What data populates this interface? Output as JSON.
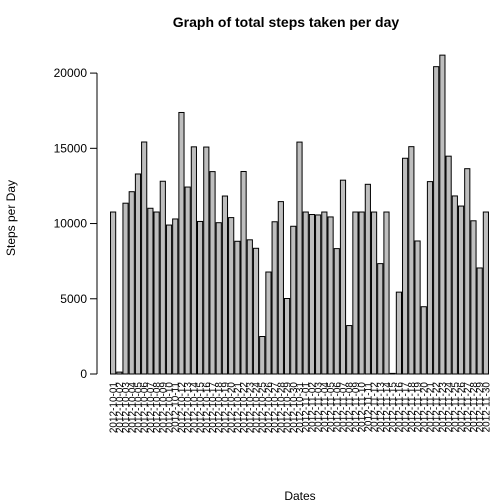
{
  "chart_data": {
    "type": "bar",
    "title": "Graph of total steps taken per day",
    "xlabel": "Dates",
    "ylabel": "Steps per Day",
    "ylim": [
      0,
      22000
    ],
    "yticks": [
      0,
      5000,
      10000,
      15000,
      20000
    ],
    "bar_fill": "#bebebe",
    "bar_stroke": "#000000",
    "categories": [
      "2012-10-01",
      "2012-10-02",
      "2012-10-03",
      "2012-10-04",
      "2012-10-05",
      "2012-10-06",
      "2012-10-07",
      "2012-10-08",
      "2012-10-09",
      "2012-10-10",
      "2012-10-11",
      "2012-10-12",
      "2012-10-13",
      "2012-10-14",
      "2012-10-15",
      "2012-10-16",
      "2012-10-17",
      "2012-10-18",
      "2012-10-19",
      "2012-10-20",
      "2012-10-21",
      "2012-10-22",
      "2012-10-23",
      "2012-10-24",
      "2012-10-25",
      "2012-10-26",
      "2012-10-27",
      "2012-10-28",
      "2012-10-29",
      "2012-10-30",
      "2012-10-31",
      "2012-11-01",
      "2012-11-02",
      "2012-11-03",
      "2012-11-04",
      "2012-11-05",
      "2012-11-06",
      "2012-11-07",
      "2012-11-08",
      "2012-11-09",
      "2012-11-10",
      "2012-11-11",
      "2012-11-12",
      "2012-11-13",
      "2012-11-14",
      "2012-11-15",
      "2012-11-16",
      "2012-11-17",
      "2012-11-18",
      "2012-11-19",
      "2012-11-20",
      "2012-11-21",
      "2012-11-22",
      "2012-11-23",
      "2012-11-24",
      "2012-11-25",
      "2012-11-26",
      "2012-11-27",
      "2012-11-28",
      "2012-11-29",
      "2012-11-30"
    ],
    "values": [
      10766,
      126,
      11352,
      12116,
      13294,
      15420,
      11015,
      10766,
      12811,
      9900,
      10304,
      17382,
      12426,
      15098,
      10139,
      15084,
      13452,
      10056,
      11829,
      10395,
      8821,
      13460,
      8918,
      8355,
      2492,
      6778,
      10119,
      11458,
      5018,
      9819,
      15414,
      10766,
      10600,
      10571,
      10766,
      10439,
      8334,
      12883,
      3219,
      10766,
      10766,
      12608,
      10765,
      7336,
      10766,
      41,
      5441,
      14339,
      15110,
      8841,
      4472,
      12787,
      20427,
      21194,
      14478,
      11834,
      11162,
      13646,
      10183,
      7047,
      10766
    ]
  }
}
